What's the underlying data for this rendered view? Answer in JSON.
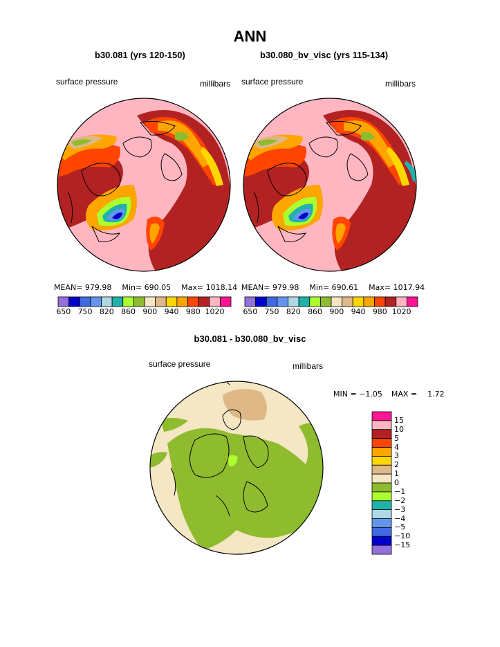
{
  "page": {
    "title": "ANN",
    "diff_title": "b30.081 - b30.080_bv_visc"
  },
  "panels": [
    {
      "title": "b30.081 (yrs 120-150)",
      "variable": "surface pressure",
      "units": "millibars",
      "mean_label": "MEAN=",
      "mean": "979.98",
      "min_label": "Min=",
      "min": "690.05",
      "max_label": "Max=",
      "max": "1018.14"
    },
    {
      "title": "b30.080_bv_visc (yrs 115-134)",
      "variable": "surface pressure",
      "units": "millibars",
      "mean_label": "MEAN=",
      "mean": "979.98",
      "min_label": "Min=",
      "min": "690.61",
      "max_label": "Max=",
      "max": "1017.94"
    },
    {
      "title": "b30.081 - b30.080_bv_visc",
      "variable": "surface pressure",
      "units": "millibars",
      "min_label": "MIN =",
      "min": "−1.05",
      "max_label": "MAX =",
      "max": "1.72"
    }
  ],
  "abs_colorbar": {
    "colors": [
      "#9370db",
      "#0000cd",
      "#4169e1",
      "#6495ed",
      "#add8e6",
      "#20b2aa",
      "#adff2f",
      "#8fbc2f",
      "#f5e6c4",
      "#deb887",
      "#ffd700",
      "#ffa500",
      "#ff4500",
      "#b22222",
      "#ffb6c1",
      "#ff1493"
    ],
    "tick_labels": [
      "650",
      "750",
      "820",
      "860",
      "900",
      "940",
      "980",
      "1020"
    ]
  },
  "diff_colorbar": {
    "colors": [
      "#ff1493",
      "#ffb6c1",
      "#b22222",
      "#ff4500",
      "#ffa500",
      "#ffd700",
      "#deb887",
      "#f5e6c4",
      "#8fbc2f",
      "#adff2f",
      "#20b2aa",
      "#add8e6",
      "#6495ed",
      "#4169e1",
      "#0000cd",
      "#9370db"
    ],
    "tick_labels": [
      "15",
      "10",
      "5",
      "4",
      "3",
      "2",
      "1",
      "0",
      "−1",
      "−2",
      "−3",
      "−4",
      "−5",
      "−10",
      "−15"
    ]
  },
  "colors": {
    "pink": "#ffb6c1",
    "firebrick": "#b22222",
    "orangered": "#ff4500",
    "orange": "#ffa500",
    "gold": "#ffd700",
    "tan": "#deb887",
    "wheat": "#f5e6c4",
    "olive": "#8fbc2f",
    "lime": "#adff2f",
    "blue": "#4169e1",
    "navy": "#0000cd"
  }
}
